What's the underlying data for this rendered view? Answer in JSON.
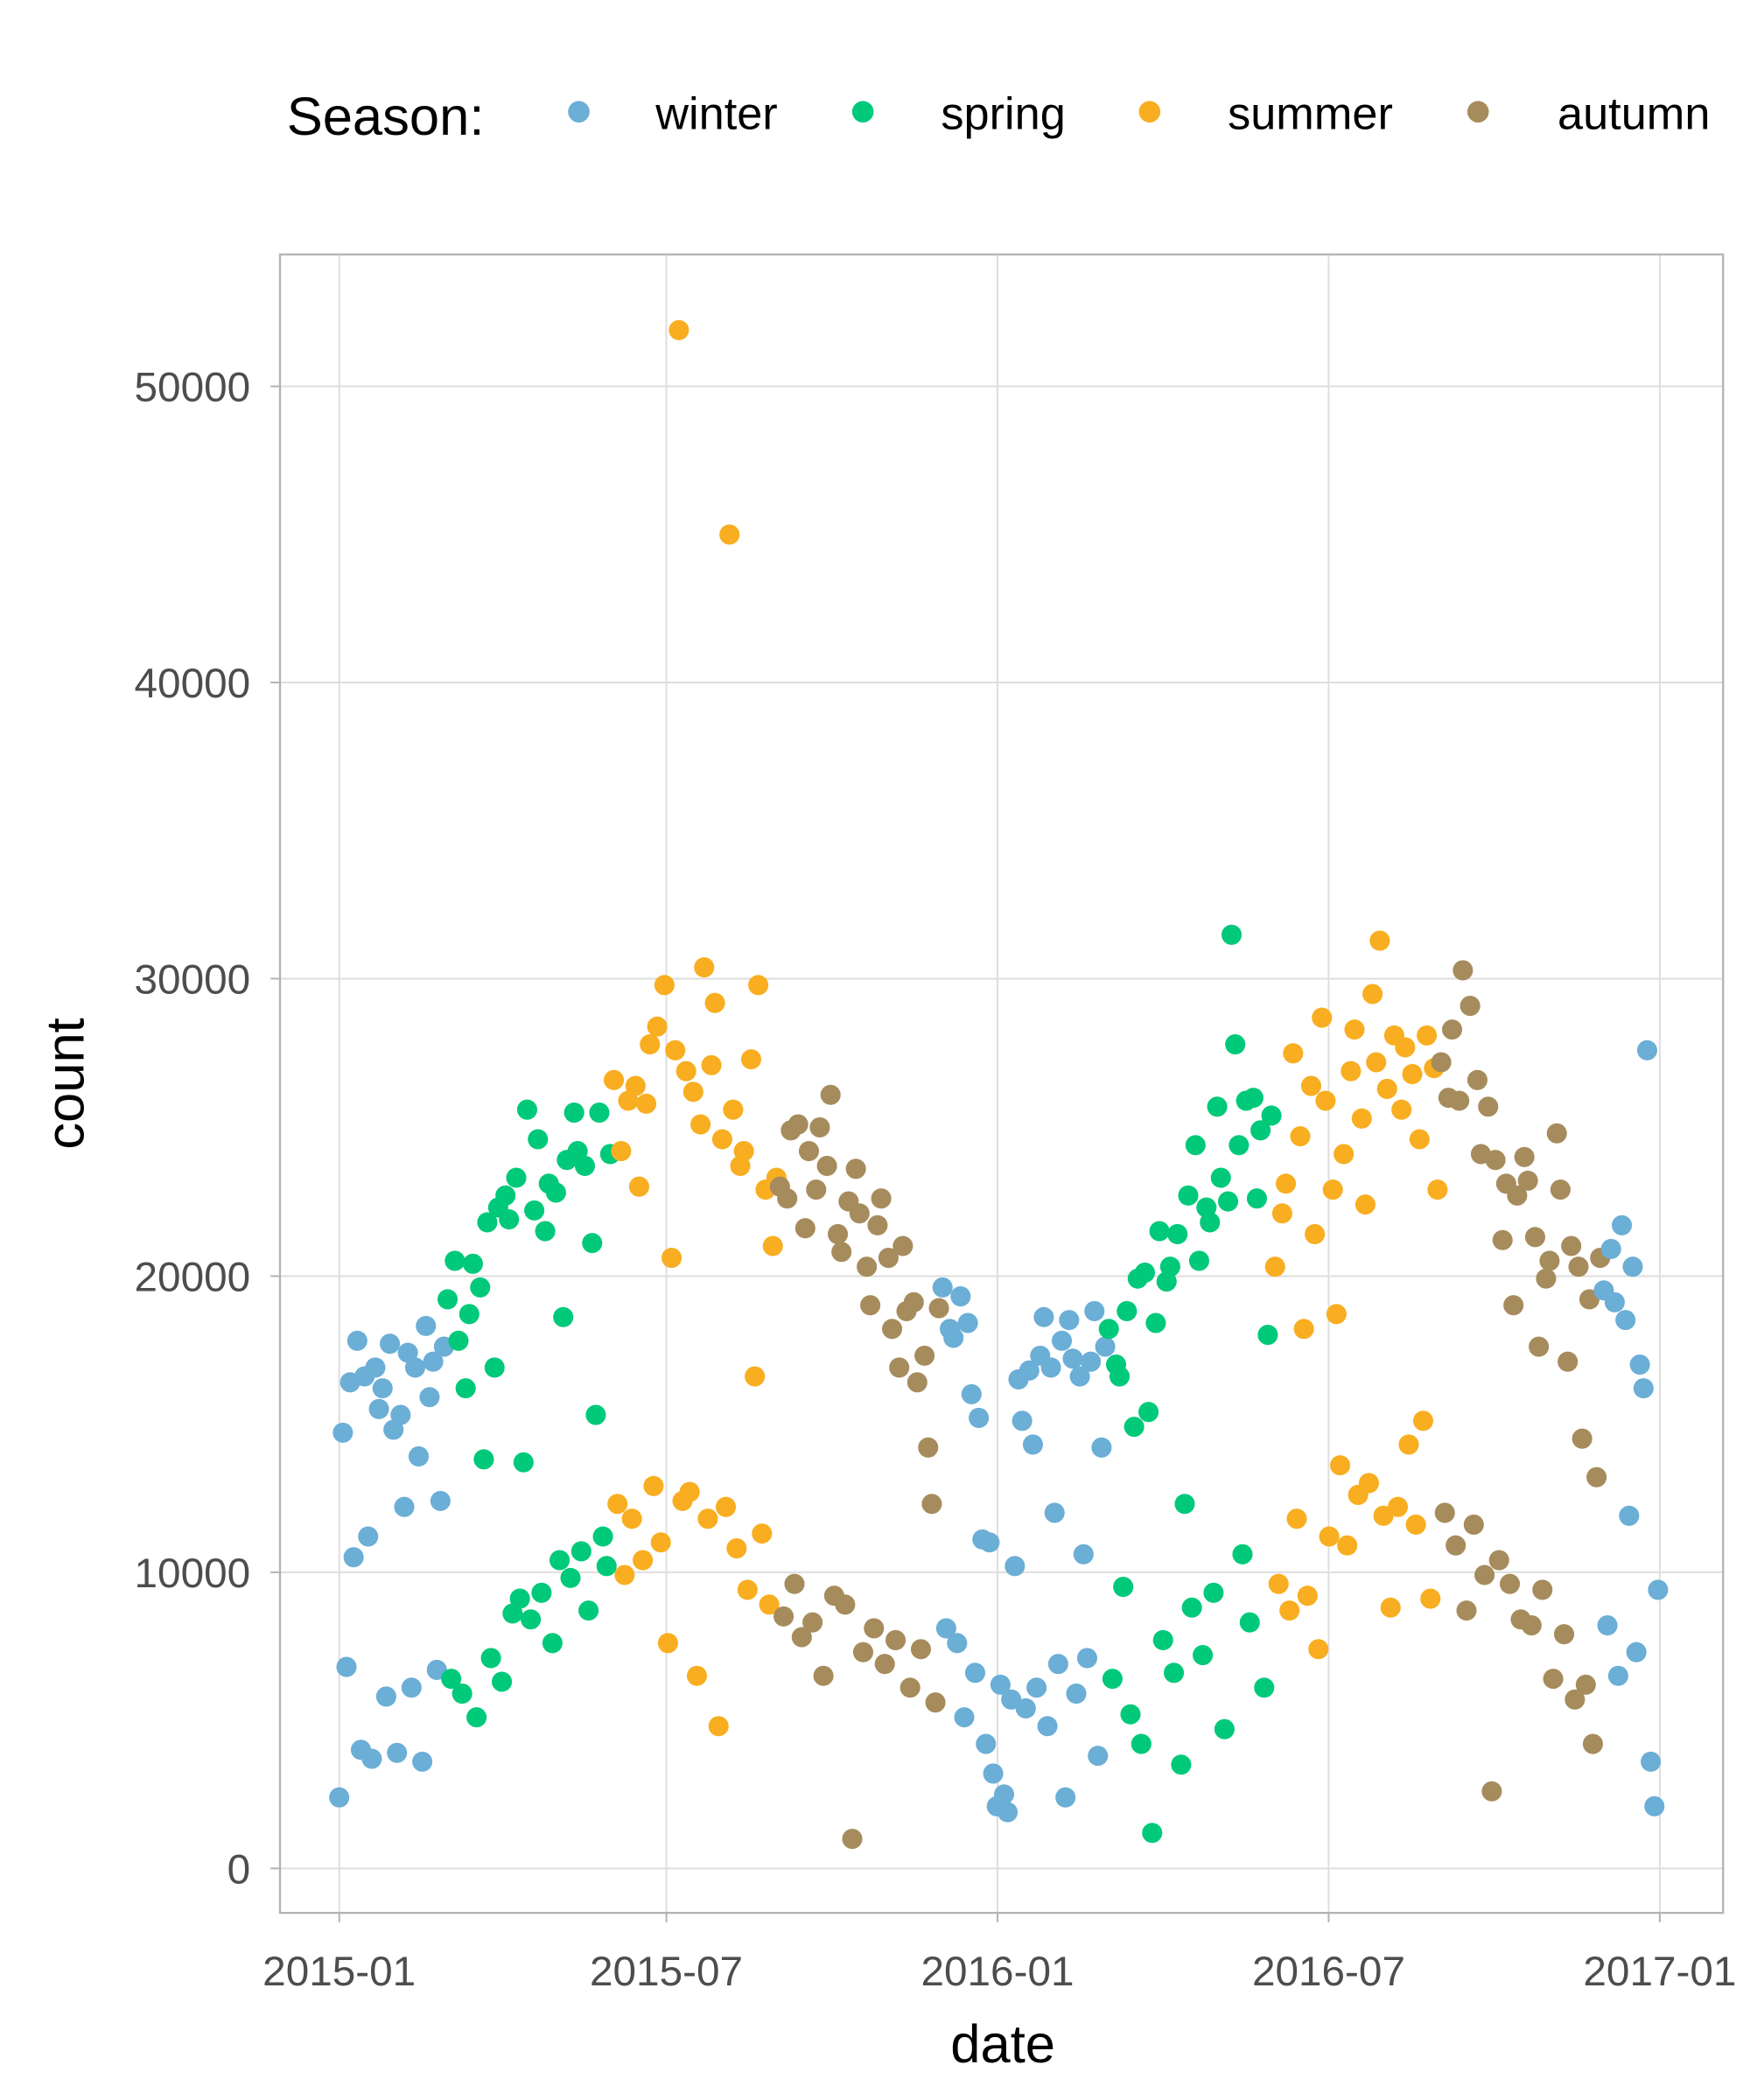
{
  "chart_data": {
    "type": "scatter",
    "title": "",
    "xlabel": "date",
    "ylabel": "count",
    "x_origin": "2015-01-01",
    "x_unit": "days since origin",
    "x_step": 2,
    "value_multiplier": 1000,
    "xlim_days": [
      0,
      731
    ],
    "ylim": [
      -1500,
      54500
    ],
    "x_ticks": [
      {
        "label": "2015-01",
        "day": 0
      },
      {
        "label": "2015-07",
        "day": 181
      },
      {
        "label": "2016-01",
        "day": 365
      },
      {
        "label": "2016-07",
        "day": 547
      },
      {
        "label": "2017-01",
        "day": 731
      }
    ],
    "y_ticks": [
      {
        "label": "0",
        "value": 0
      },
      {
        "label": "10000",
        "value": 10000
      },
      {
        "label": "20000",
        "value": 20000
      },
      {
        "label": "30000",
        "value": 30000
      },
      {
        "label": "40000",
        "value": 40000
      },
      {
        "label": "50000",
        "value": 50000
      }
    ],
    "grid": true,
    "legend": {
      "title": "Season:",
      "placement": "top",
      "entries": [
        {
          "label": "winter",
          "color": "#6baed6"
        },
        {
          "label": "spring",
          "color": "#00c97a"
        },
        {
          "label": "summer",
          "color": "#f8ae20"
        },
        {
          "label": "autumn",
          "color": "#a68c5c"
        }
      ]
    },
    "series": [
      {
        "name": "winter",
        "x_start": 0,
        "values": [
          2.4,
          14.7,
          6.8,
          16.4,
          10.5,
          17.8,
          4.0,
          16.6,
          11.2,
          3.7,
          16.9,
          15.5,
          16.2,
          5.8,
          17.7,
          14.8,
          3.9,
          15.3,
          12.2,
          17.4,
          6.1,
          16.9,
          13.9,
          3.6,
          18.3,
          15.9,
          17.1,
          6.7,
          12.4,
          17.6
        ]
      },
      {
        "name": "spring",
        "x_start": 60,
        "values": [
          19.2,
          6.4,
          20.5,
          17.8,
          5.9,
          16.2,
          18.7,
          20.4,
          5.1,
          19.6,
          13.8,
          21.8,
          7.1,
          16.9,
          22.3,
          6.3,
          22.7,
          21.9,
          8.6,
          23.3,
          9.1,
          13.7,
          25.6,
          8.4,
          22.2,
          24.6,
          9.3,
          21.5,
          23.1,
          7.6,
          22.8,
          10.4,
          18.6,
          23.9,
          9.8,
          25.5,
          24.2,
          10.7,
          23.7,
          8.7,
          21.1,
          15.3,
          25.5,
          11.2,
          10.2,
          24.1
        ]
      },
      {
        "name": "summer",
        "x_start": 152,
        "values": [
          26.6,
          12.3,
          24.2,
          9.9,
          25.9,
          11.8,
          26.4,
          23.0,
          10.4,
          25.8,
          27.8,
          12.9,
          28.4,
          11.0,
          29.8,
          7.6,
          20.6,
          27.6,
          51.9,
          12.4,
          26.9,
          12.7,
          26.2,
          6.5,
          25.1,
          30.4,
          11.8,
          27.1,
          29.2,
          4.8,
          24.6,
          12.2,
          45.0,
          25.6,
          10.8,
          23.7,
          24.2,
          9.4,
          27.3,
          16.6,
          29.8,
          11.3,
          22.9,
          8.9,
          21.0,
          23.3
        ]
      },
      {
        "name": "autumn",
        "x_start": 244,
        "values": [
          23.0,
          8.5,
          22.6,
          24.9,
          9.6,
          25.1,
          7.8,
          21.6,
          24.2,
          8.3,
          22.9,
          25.0,
          6.5,
          23.7,
          26.1,
          9.2,
          21.4,
          20.8,
          8.9,
          22.5,
          1.0,
          23.6,
          22.1,
          7.3,
          20.3,
          19.0,
          8.1,
          21.7,
          22.6,
          6.9,
          20.6,
          18.2,
          7.7,
          16.9,
          21.0,
          18.8,
          6.1,
          19.1,
          16.4,
          7.4,
          17.3,
          14.2,
          12.3,
          5.6,
          18.9
        ]
      },
      {
        "name": "winter",
        "x_start": 334,
        "values": [
          19.6,
          8.1,
          18.2,
          17.9,
          7.6,
          19.3,
          5.1,
          18.4,
          16.0,
          6.6,
          15.2,
          11.1,
          4.2,
          11.0,
          3.2,
          2.1,
          6.2,
          2.5,
          1.9,
          5.7,
          10.2,
          16.5,
          15.1,
          5.4,
          16.8,
          14.3,
          6.1,
          17.3,
          18.6,
          4.8,
          16.9,
          12.0,
          6.9,
          17.8,
          2.4,
          18.5,
          17.2,
          5.9,
          16.6,
          10.6,
          7.1,
          17.1,
          18.8,
          3.8,
          14.2,
          17.6
        ]
      },
      {
        "name": "spring",
        "x_start": 426,
        "values": [
          18.2,
          6.4,
          17.0,
          16.6,
          9.5,
          18.8,
          5.2,
          14.9,
          19.9,
          4.2,
          20.1,
          15.4,
          1.2,
          18.4,
          21.5,
          7.7,
          19.8,
          20.3,
          6.6,
          21.4,
          3.5,
          12.3,
          22.7,
          8.8,
          24.4,
          20.5,
          7.2,
          22.3,
          21.8,
          9.3,
          25.7,
          23.3,
          4.7,
          22.5,
          31.5,
          27.8,
          24.4,
          10.6,
          25.9,
          8.3,
          26.0,
          22.6,
          24.9,
          6.1,
          18.0,
          25.4
        ]
      },
      {
        "name": "summer",
        "x_start": 518,
        "values": [
          20.3,
          9.6,
          22.1,
          23.1,
          8.7,
          27.5,
          11.8,
          24.7,
          18.2,
          9.2,
          26.4,
          21.4,
          7.4,
          28.7,
          25.9,
          11.2,
          22.9,
          18.7,
          13.6,
          24.1,
          10.9,
          26.9,
          28.3,
          12.6,
          25.3,
          22.4,
          13.0,
          29.5,
          27.2,
          31.3,
          11.9,
          26.3,
          8.8,
          28.1,
          12.2,
          25.6,
          27.7,
          14.3,
          26.8,
          11.6,
          24.6,
          15.1,
          28.1,
          9.1,
          27.0,
          22.9
        ]
      },
      {
        "name": "autumn",
        "x_start": 610,
        "values": [
          27.2,
          12.0,
          26.0,
          28.3,
          10.9,
          25.9,
          30.3,
          8.7,
          29.1,
          11.6,
          26.6,
          24.1,
          9.9,
          25.7,
          2.6,
          23.9,
          10.4,
          21.2,
          23.1,
          9.6,
          19.0,
          22.7,
          8.4,
          24.0,
          23.2,
          8.2,
          21.3,
          17.6,
          9.4,
          19.9,
          20.5,
          6.4,
          24.8,
          22.9,
          7.9,
          17.1,
          21.0,
          5.7,
          20.3,
          14.5,
          6.2,
          19.2,
          4.2,
          13.2,
          20.6
        ]
      },
      {
        "name": "winter",
        "x_start": 700,
        "values": [
          19.5,
          8.2,
          20.9,
          19.1,
          6.5,
          21.7,
          18.5,
          11.9,
          20.3,
          7.3,
          17.0,
          16.2,
          27.6,
          3.6,
          2.1,
          9.4
        ]
      }
    ]
  }
}
